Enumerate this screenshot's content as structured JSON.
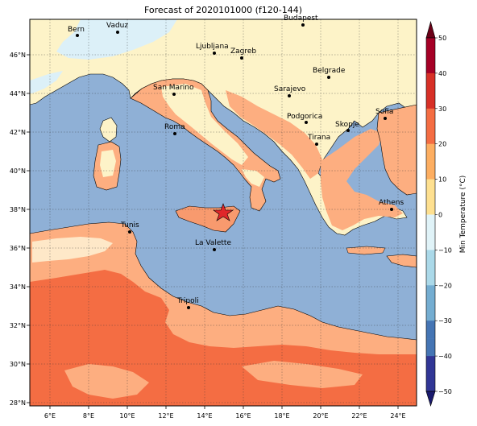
{
  "title": "Forecast of 2020101000 (f120-144)",
  "lon_labels": [
    "6°E",
    "8°E",
    "10°E",
    "12°E",
    "14°E",
    "16°E",
    "18°E",
    "20°E",
    "22°E",
    "24°E"
  ],
  "lat_labels": [
    "46°N",
    "44°N",
    "42°N",
    "40°N",
    "38°N",
    "36°N",
    "34°N",
    "32°N",
    "30°N",
    "28°N"
  ],
  "colorbar": {
    "label": "Min Temperature (°C)",
    "ticks": [
      "50",
      "40",
      "30",
      "20",
      "10",
      "0",
      "−10",
      "−20",
      "−30",
      "−40",
      "−50"
    ],
    "colors": [
      "#6b0017",
      "#a50026",
      "#d73027",
      "#f46d43",
      "#fdae61",
      "#fee090",
      "#e0f3f8",
      "#abd9e9",
      "#74add1",
      "#4575b4",
      "#313695",
      "#1a1a6e"
    ]
  },
  "cities": [
    {
      "name": "Bern"
    },
    {
      "name": "Vaduz"
    },
    {
      "name": "Budapest"
    },
    {
      "name": "Ljubljana"
    },
    {
      "name": "Zagreb"
    },
    {
      "name": "Belgrade"
    },
    {
      "name": "San Marino"
    },
    {
      "name": "Sarajevo"
    },
    {
      "name": "Sofia"
    },
    {
      "name": "Podgorica"
    },
    {
      "name": "Skopje"
    },
    {
      "name": "Roma"
    },
    {
      "name": "Tirana"
    },
    {
      "name": "Athens"
    },
    {
      "name": "Tunis"
    },
    {
      "name": "La Valette"
    },
    {
      "name": "Tripoli"
    }
  ],
  "colors": {
    "sea": "#8fb0d6",
    "cold_land": "#fdf3c8",
    "light_blue": "#dcf0f8",
    "warm_light": "#fdae80",
    "warm": "#f89a6e",
    "hot": "#f46d43",
    "marker": "#e0262a"
  }
}
